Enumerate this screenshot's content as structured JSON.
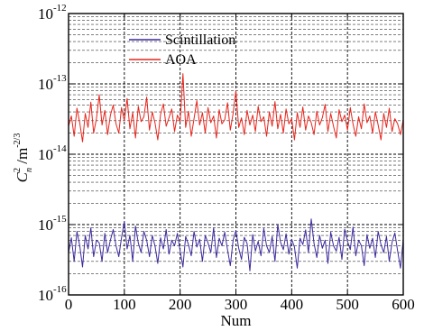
{
  "chart_data": {
    "type": "line",
    "xlabel": "Num",
    "ylabel": "C_n^2 /m^-2/3",
    "ylabel_parts": {
      "base": "C",
      "sup": "2",
      "sub": "n",
      "unit": " /m",
      "unit_exp": "-2/3"
    },
    "xlim": [
      0,
      600
    ],
    "ylim": [
      1e-16,
      1e-12
    ],
    "yscale": "log",
    "grid": true,
    "legend_position": "top-left",
    "x_ticks": [
      "0",
      "100",
      "200",
      "300",
      "400",
      "500",
      "600"
    ],
    "x_tick_values": [
      0,
      100,
      200,
      300,
      400,
      500,
      600
    ],
    "y_ticks": [
      {
        "base": "10",
        "exp": "-12",
        "value": 1e-12
      },
      {
        "base": "10",
        "exp": "-13",
        "value": 1e-13
      },
      {
        "base": "10",
        "exp": "-14",
        "value": 1e-14
      },
      {
        "base": "10",
        "exp": "-15",
        "value": 1e-15
      },
      {
        "base": "10",
        "exp": "-16",
        "value": 1e-16
      }
    ],
    "series": [
      {
        "name": "Scintillation",
        "color": "#3b2a9e",
        "x_start": 0,
        "x_step": 5,
        "values": [
          4e-16,
          6.5e-16,
          3e-16,
          8e-16,
          5e-16,
          2.5e-16,
          7e-16,
          4.5e-16,
          9e-16,
          3.5e-16,
          6e-16,
          5.5e-16,
          3e-16,
          7.5e-16,
          4e-16,
          6e-16,
          8.5e-16,
          5e-16,
          3.5e-16,
          6.5e-16,
          1.1e-15,
          4.5e-16,
          7e-16,
          3e-16,
          9.5e-16,
          5.5e-16,
          4e-16,
          8e-16,
          6e-16,
          3.5e-16,
          7e-16,
          5e-16,
          2.8e-16,
          6.5e-16,
          4.5e-16,
          8.5e-16,
          3.8e-16,
          6e-16,
          5e-16,
          7.5e-16,
          4.2e-16,
          2.5e-16,
          6.8e-16,
          5.2e-16,
          3.6e-16,
          8e-16,
          4.8e-16,
          6.2e-16,
          3e-16,
          7e-16,
          5.5e-16,
          4e-16,
          9e-16,
          3.4e-16,
          6.4e-16,
          5e-16,
          7.8e-16,
          4.4e-16,
          2.6e-16,
          6e-16,
          8.2e-16,
          4.6e-16,
          3.2e-16,
          6.6e-16,
          5.4e-16,
          2.2e-16,
          7.2e-16,
          4.2e-16,
          5.8e-16,
          3.6e-16,
          8.8e-16,
          5e-16,
          4e-16,
          6.8e-16,
          3e-16,
          1e-15,
          5.6e-16,
          4.4e-16,
          7.4e-16,
          3.8e-16,
          6.2e-16,
          4.8e-16,
          2.4e-16,
          6.4e-16,
          5.2e-16,
          8.4e-16,
          4e-16,
          1.2e-15,
          5.4e-16,
          3.4e-16,
          7e-16,
          4.6e-16,
          6e-16,
          2.8e-16,
          7.8e-16,
          5e-16,
          4.2e-16,
          6.6e-16,
          3.2e-16,
          8.6e-16,
          5.8e-16,
          4.4e-16,
          9.2e-16,
          3.6e-16,
          6e-16,
          5e-16,
          2.6e-16,
          7.2e-16,
          4.6e-16,
          6.4e-16,
          3.4e-16,
          8e-16,
          5.2e-16,
          4e-16,
          6.8e-16,
          3e-16,
          5.6e-16,
          7.6e-16,
          4.2e-16,
          2.4e-16,
          6.2e-16
        ]
      },
      {
        "name": "AOA",
        "color": "#e8241b",
        "x_start": 0,
        "x_step": 5,
        "values": [
          2.5e-14,
          3.5e-14,
          1.8e-14,
          4.5e-14,
          2.8e-14,
          1.5e-14,
          3.8e-14,
          2.4e-14,
          5.5e-14,
          2e-14,
          3.2e-14,
          7e-14,
          2.6e-14,
          4.2e-14,
          1.9e-14,
          3.6e-14,
          5e-14,
          2.7e-14,
          2e-14,
          4.6e-14,
          3e-14,
          6.2e-14,
          2.3e-14,
          3.9e-14,
          1.7e-14,
          4.8e-14,
          2.9e-14,
          3.4e-14,
          6.5e-14,
          2.2e-14,
          4e-14,
          2.8e-14,
          1.6e-14,
          3.7e-14,
          5.2e-14,
          2.5e-14,
          3.3e-14,
          4.4e-14,
          2.1e-14,
          3.6e-14,
          2.9e-14,
          1.4e-13,
          2.4e-14,
          4.1e-14,
          1.8e-14,
          3.2e-14,
          5.8e-14,
          2.6e-14,
          3.9e-14,
          2e-14,
          4.6e-14,
          2.8e-14,
          3.5e-14,
          1.7e-14,
          4.3e-14,
          2.7e-14,
          3.1e-14,
          5.4e-14,
          2.2e-14,
          3.8e-14,
          8e-14,
          2.4e-14,
          3.3e-14,
          1.9e-14,
          4.2e-14,
          2.6e-14,
          3.6e-14,
          2.1e-14,
          4.8e-14,
          2.9e-14,
          3.4e-14,
          1.8e-14,
          4e-14,
          2.5e-14,
          5.6e-14,
          2.3e-14,
          3.7e-14,
          2e-14,
          4.4e-14,
          2.7e-14,
          3.2e-14,
          1.6e-14,
          3.9e-14,
          2.4e-14,
          4.7e-14,
          2.2e-14,
          3.5e-14,
          2.8e-14,
          1.9e-14,
          4.1e-14,
          2.6e-14,
          3.3e-14,
          5.1e-14,
          2.1e-14,
          3.8e-14,
          2.5e-14,
          1.7e-14,
          4.3e-14,
          2.9e-14,
          3.6e-14,
          2.2e-14,
          4.6e-14,
          2.7e-14,
          1.8e-14,
          3.4e-14,
          2.3e-14,
          5.2e-14,
          2.8e-14,
          3.5e-14,
          2e-14,
          4e-14,
          2.6e-14,
          1.6e-14,
          3.8e-14,
          2.4e-14,
          4.5e-14,
          2.1e-14,
          3.2e-14,
          2.7e-14,
          1.9e-14,
          3.1e-14
        ]
      }
    ]
  }
}
